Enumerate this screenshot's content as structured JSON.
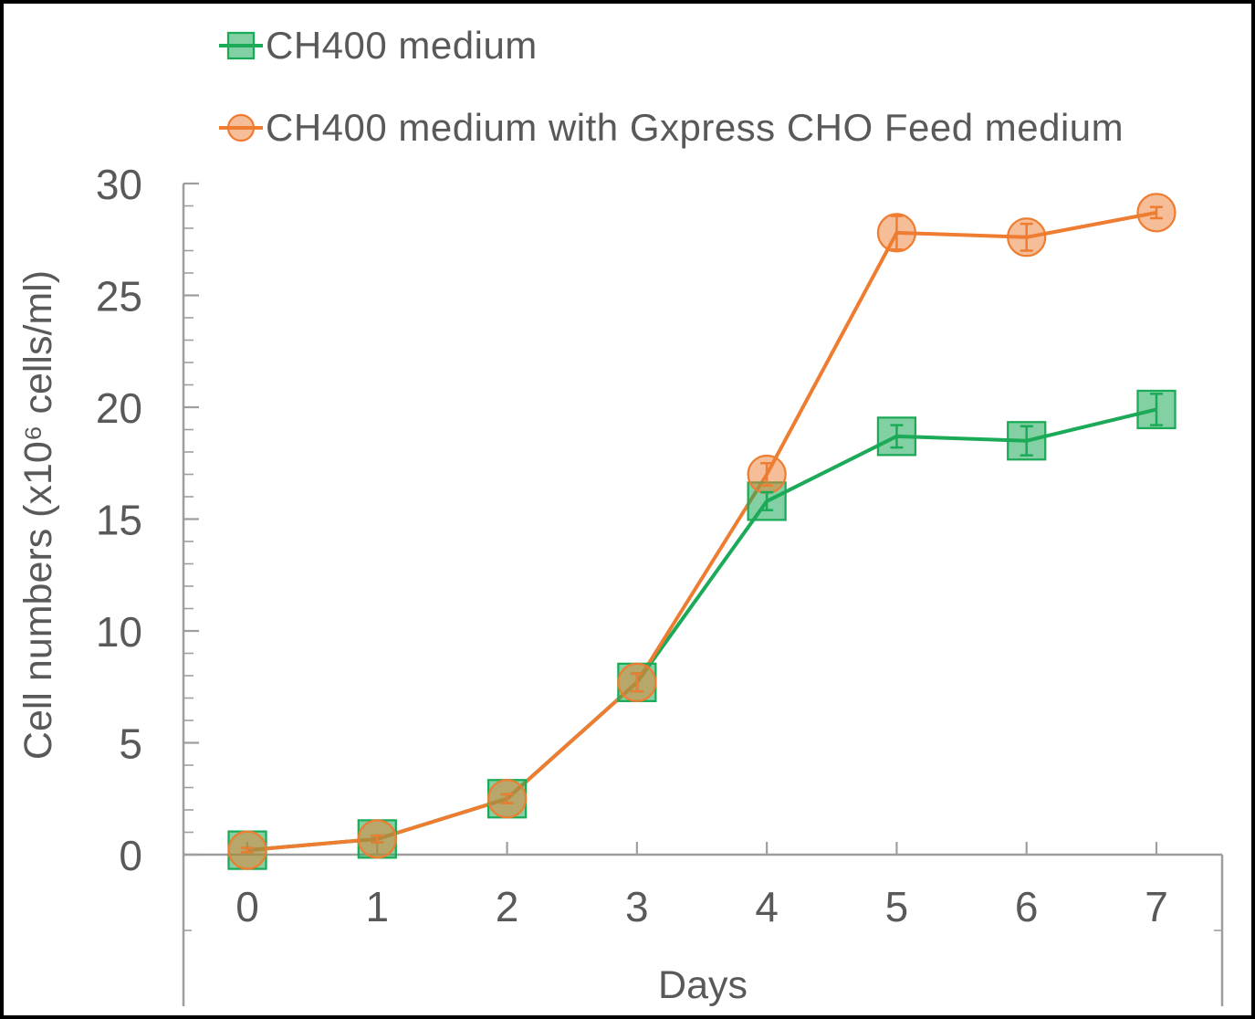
{
  "chart_data": {
    "type": "line",
    "title": "",
    "xlabel": "Days",
    "ylabel": "Cell numbers (x10⁶ cells/ml)",
    "x": [
      0,
      1,
      2,
      3,
      4,
      5,
      6,
      7
    ],
    "xticks": [
      0,
      1,
      2,
      3,
      4,
      5,
      6,
      7
    ],
    "yticks": [
      0,
      5,
      10,
      15,
      20,
      25,
      30
    ],
    "xlim": [
      0,
      7
    ],
    "ylim": [
      0,
      30
    ],
    "y_minor_step": 1,
    "grid": false,
    "legend_position": "top-left",
    "series": [
      {
        "name": "CH400 medium",
        "marker": "square",
        "color": "#1BAA58",
        "fill_opacity": 0.55,
        "values": [
          0.2,
          0.7,
          2.5,
          7.7,
          15.8,
          18.7,
          18.5,
          19.9
        ],
        "errors": [
          0.1,
          0.15,
          0.2,
          0.4,
          0.4,
          0.5,
          0.65,
          0.7
        ]
      },
      {
        "name": "CH400 medium with Gxpress CHO Feed medium",
        "marker": "circle",
        "color": "#EE7D31",
        "fill_opacity": 0.5,
        "values": [
          0.2,
          0.7,
          2.5,
          7.7,
          17.0,
          27.8,
          27.6,
          28.7
        ],
        "errors": [
          0.1,
          0.15,
          0.2,
          0.4,
          0.5,
          0.75,
          0.6,
          0.25
        ]
      }
    ],
    "axis_color": "#9E9E9E",
    "text_color": "#595959"
  }
}
